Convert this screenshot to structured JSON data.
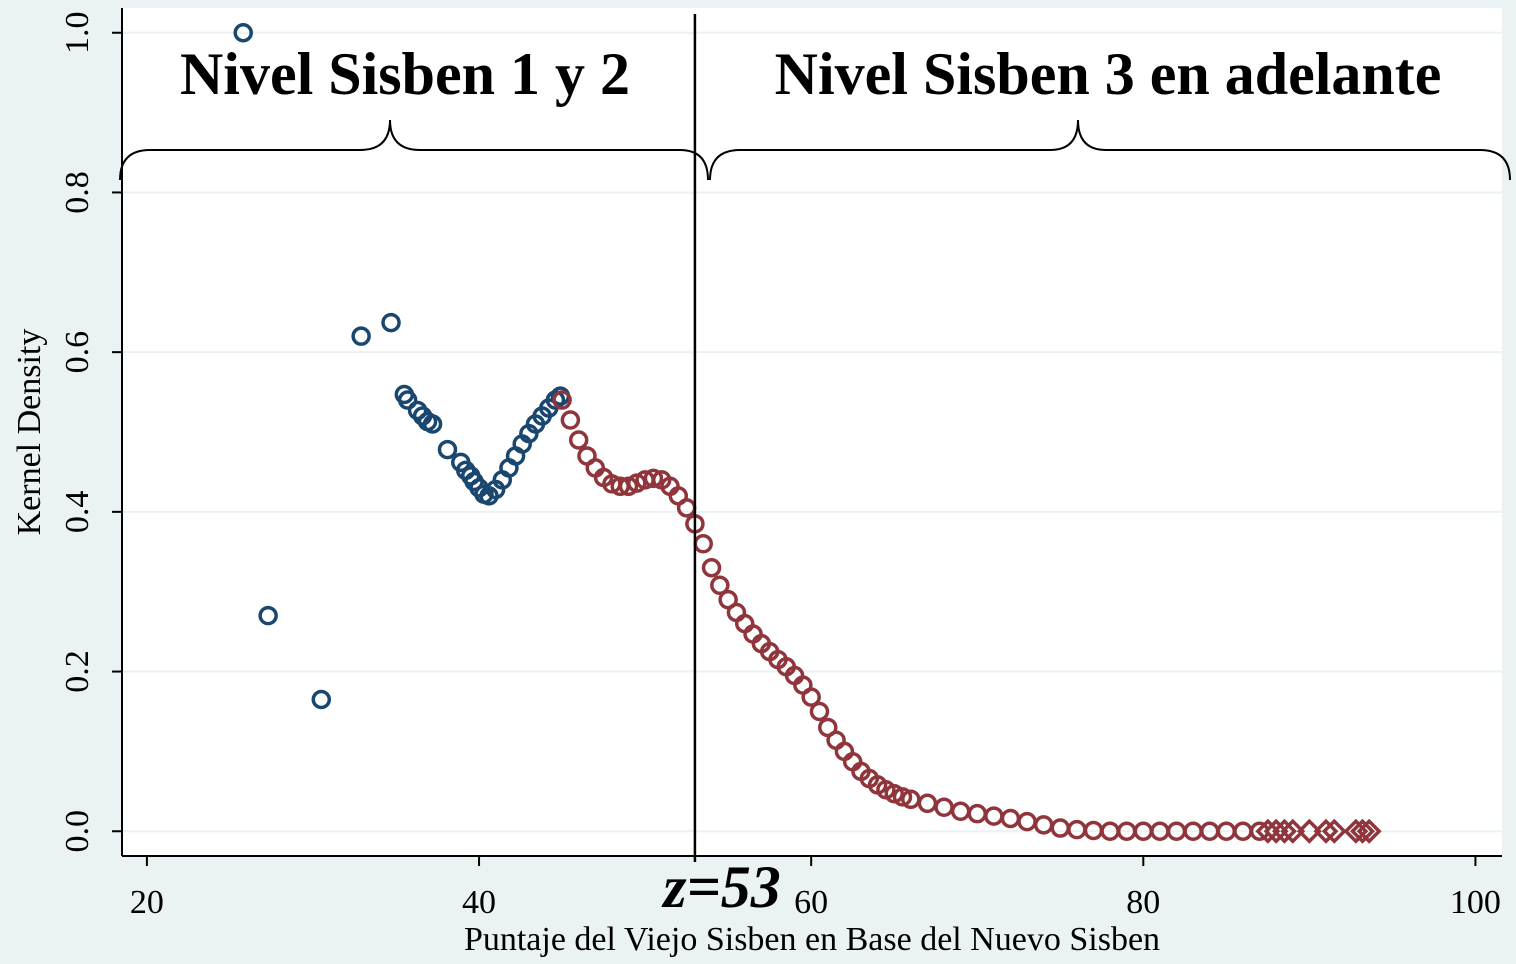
{
  "chart_data": {
    "type": "scatter",
    "x_label": "Puntaje del Viejo Sisben en Base del Nuevo Sisben",
    "y_label": "Kernel Density",
    "xlim": [
      18.5,
      101.6
    ],
    "ylim": [
      -0.031,
      1.031
    ],
    "xticks": [
      20,
      40,
      60,
      80,
      100
    ],
    "yticks": [
      {
        "value": 0,
        "label": "0.0"
      },
      0.2,
      0.4,
      0.6,
      0.8,
      {
        "value": 1,
        "label": "1.0"
      }
    ],
    "grid": true,
    "vline": 53,
    "annotations": [
      "Nivel Sisben 1 y 2",
      "Nivel Sisben 3 en adelante",
      "z=53"
    ],
    "series": [
      {
        "color": "#1a476f",
        "marker": "circle",
        "x": [
          25.8,
          27.3,
          30.5,
          32.9,
          34.7,
          35.5,
          35.7,
          36.3,
          36.6,
          36.9,
          37.2,
          38.1,
          38.9,
          39.2,
          39.5,
          39.7,
          40,
          40.3,
          40.6,
          41,
          41.4,
          41.8,
          42.2,
          42.6,
          43,
          43.4,
          43.8,
          44.2,
          44.6,
          44.9
        ],
        "values": [
          1.0,
          0.27,
          0.165,
          0.62,
          0.637,
          0.547,
          0.54,
          0.527,
          0.52,
          0.513,
          0.51,
          0.478,
          0.462,
          0.452,
          0.445,
          0.438,
          0.43,
          0.422,
          0.42,
          0.428,
          0.44,
          0.455,
          0.47,
          0.485,
          0.498,
          0.51,
          0.52,
          0.53,
          0.54,
          0.545
        ]
      },
      {
        "color": "#90353b",
        "marker": "circle",
        "x": [
          45,
          45.5,
          46,
          46.5,
          47,
          47.5,
          48,
          48.5,
          49,
          49.5,
          50,
          50.5,
          51,
          51.5,
          52,
          52.5,
          53,
          53.5,
          54,
          54.5,
          55,
          55.5,
          56,
          56.5,
          57,
          57.5,
          58,
          58.5,
          59,
          59.5,
          60,
          60.5,
          61,
          61.5,
          62,
          62.5,
          63,
          63.5,
          64,
          64.5,
          65,
          65.5,
          66,
          67,
          68,
          69,
          70,
          71,
          72,
          73,
          74,
          75,
          76,
          77,
          78,
          79,
          80,
          81,
          82,
          83,
          84,
          85,
          86,
          87
        ],
        "values": [
          0.54,
          0.515,
          0.49,
          0.47,
          0.455,
          0.443,
          0.435,
          0.432,
          0.432,
          0.436,
          0.44,
          0.442,
          0.44,
          0.432,
          0.42,
          0.405,
          0.385,
          0.36,
          0.33,
          0.308,
          0.29,
          0.274,
          0.26,
          0.247,
          0.235,
          0.225,
          0.215,
          0.206,
          0.195,
          0.183,
          0.168,
          0.15,
          0.13,
          0.114,
          0.1,
          0.087,
          0.075,
          0.066,
          0.058,
          0.052,
          0.047,
          0.043,
          0.04,
          0.035,
          0.03,
          0.025,
          0.022,
          0.019,
          0.016,
          0.012,
          0.008,
          0.004,
          0.002,
          0.001,
          0,
          0,
          0,
          0,
          0,
          0,
          0,
          0,
          0,
          0
        ]
      },
      {
        "color": "#90353b",
        "marker": "diamond",
        "x": [
          87.5,
          88,
          88.5,
          89,
          90,
          91,
          91.5,
          92.8,
          93.2,
          93.6
        ],
        "values": [
          0,
          0,
          0,
          0,
          0,
          0,
          0,
          0,
          0,
          0
        ]
      }
    ]
  }
}
